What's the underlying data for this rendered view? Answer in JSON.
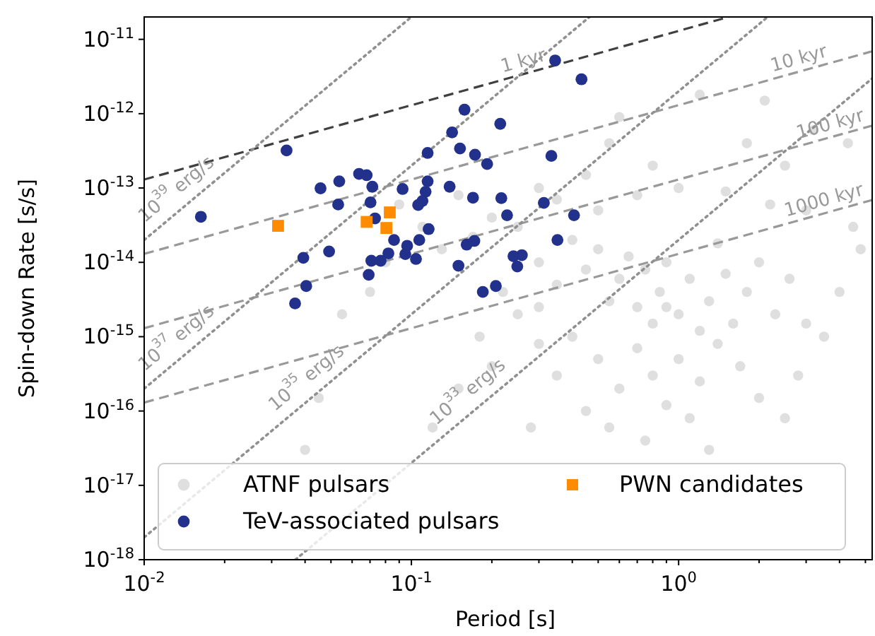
{
  "chart_data": {
    "type": "scatter",
    "xlabel": "Period [s]",
    "ylabel": "Spin-down Rate [s/s]",
    "log": "xy",
    "xlim": [
      0.01,
      5.3
    ],
    "ylim": [
      1e-18,
      2e-11
    ],
    "xticks": [
      {
        "value": 0.01,
        "label": "10$^{-2}$"
      },
      {
        "value": 0.02,
        "label": null
      },
      {
        "value": 0.03,
        "label": null
      },
      {
        "value": 0.04,
        "label": null
      },
      {
        "value": 0.05,
        "label": null
      },
      {
        "value": 0.06,
        "label": null
      },
      {
        "value": 0.07,
        "label": null
      },
      {
        "value": 0.08,
        "label": null
      },
      {
        "value": 0.09,
        "label": null
      },
      {
        "value": 0.1,
        "label": "10$^{-1}$"
      },
      {
        "value": 0.2,
        "label": null
      },
      {
        "value": 0.3,
        "label": null
      },
      {
        "value": 0.4,
        "label": null
      },
      {
        "value": 0.5,
        "label": null
      },
      {
        "value": 0.6,
        "label": null
      },
      {
        "value": 0.7,
        "label": null
      },
      {
        "value": 0.8,
        "label": null
      },
      {
        "value": 0.9,
        "label": null
      },
      {
        "value": 1,
        "label": "10$^{0}$"
      },
      {
        "value": 2,
        "label": null
      },
      {
        "value": 3,
        "label": null
      },
      {
        "value": 4,
        "label": null
      },
      {
        "value": 5,
        "label": null
      }
    ],
    "yticks": [
      {
        "value": 1e-18,
        "label": "10$^{-18}$"
      },
      {
        "value": 1e-17,
        "label": "10$^{-17}$"
      },
      {
        "value": 1e-16,
        "label": "10$^{-16}$"
      },
      {
        "value": 1e-15,
        "label": "10$^{-15}$"
      },
      {
        "value": 1e-14,
        "label": "10$^{-14}$"
      },
      {
        "value": 1e-13,
        "label": "10$^{-13}$"
      },
      {
        "value": 1e-12,
        "label": "10$^{-12}$"
      },
      {
        "value": 1e-11,
        "label": "10$^{-11}$"
      }
    ],
    "grid": false,
    "legend": "bottom",
    "series": [
      {
        "name": "ATNF pulsars",
        "color": "#c4c4c4",
        "marker": "circle",
        "x": [
          0.09,
          0.11,
          0.15,
          0.2,
          0.13,
          0.17,
          0.25,
          0.3,
          0.45,
          0.55,
          0.6,
          0.8,
          1.2,
          2.1,
          3.2,
          4.3,
          1.8,
          2.5,
          0.35,
          0.5,
          0.7,
          1.0,
          1.5,
          2.2,
          3.0,
          4.5,
          0.08,
          0.07,
          0.055,
          0.045,
          0.04,
          0.3,
          0.35,
          0.4,
          0.45,
          0.5,
          0.55,
          0.6,
          0.65,
          0.7,
          0.75,
          0.8,
          0.85,
          0.9,
          1.0,
          1.1,
          1.2,
          1.3,
          1.5,
          1.6,
          1.8,
          2.0,
          2.3,
          2.6,
          3.0,
          0.25,
          0.3,
          0.4,
          0.5,
          0.6,
          0.7,
          0.8,
          0.9,
          1.0,
          1.2,
          1.4,
          1.7,
          2.0,
          0.35,
          0.45,
          0.55,
          0.75,
          1.1,
          0.2,
          0.18,
          0.22,
          0.15,
          0.12,
          0.28,
          1.3,
          2.8,
          3.5,
          4.0,
          4.8,
          2.5,
          0.3,
          0.9,
          1.4
        ],
        "values": [
          6e-14,
          3e-14,
          8e-14,
          4e-14,
          1.5e-14,
          2.2e-14,
          3e-14,
          1e-13,
          1.5e-13,
          4e-13,
          9e-13,
          2e-13,
          1.8e-12,
          1.5e-12,
          6e-13,
          4e-13,
          4e-13,
          2e-13,
          7e-14,
          5e-14,
          8e-14,
          1e-13,
          9e-14,
          6e-14,
          5e-14,
          3e-14,
          1e-14,
          4e-15,
          2e-15,
          1.5e-16,
          3e-17,
          1e-14,
          5e-15,
          2e-14,
          8e-15,
          1.5e-14,
          3e-15,
          6e-15,
          1.2e-14,
          2.5e-15,
          8e-15,
          1.5e-15,
          4e-15,
          1e-14,
          2e-15,
          6e-15,
          1.2e-15,
          3e-15,
          7e-15,
          1.5e-15,
          4e-15,
          1e-14,
          2e-15,
          6e-15,
          1.5e-15,
          2e-15,
          8e-16,
          1e-15,
          5e-16,
          2e-16,
          7e-16,
          3e-16,
          1.2e-16,
          5e-16,
          2.5e-16,
          8e-16,
          4e-16,
          1.5e-16,
          3e-16,
          1e-16,
          6e-17,
          4e-17,
          8e-17,
          4e-16,
          1e-15,
          4e-15,
          2e-16,
          6e-17,
          6e-17,
          3e-17,
          3e-16,
          1e-15,
          4e-15,
          1.5e-14,
          8e-17,
          2.5e-15,
          2.5e-15,
          1.8e-14
        ]
      },
      {
        "name": "TeV-associated pulsars",
        "color": "#22318c",
        "marker": "circle",
        "x": [
          0.0341,
          0.0163,
          0.0457,
          0.0537,
          0.0532,
          0.0637,
          0.068,
          0.0714,
          0.0703,
          0.0731,
          0.0927,
          0.115,
          0.115,
          0.113,
          0.11,
          0.106,
          0.116,
          0.0861,
          0.0964,
          0.107,
          0.082,
          0.0767,
          0.0708,
          0.0949,
          0.104,
          0.0394,
          0.0492,
          0.0692,
          0.0404,
          0.0367,
          0.142,
          0.158,
          0.152,
          0.173,
          0.192,
          0.215,
          0.139,
          0.17,
          0.217,
          0.161,
          0.172,
          0.15,
          0.185,
          0.207,
          0.345,
          0.433,
          0.334,
          0.228,
          0.313,
          0.406,
          0.352,
          0.241,
          0.259,
          0.249
        ],
        "values": [
          3.2e-13,
          4.1e-14,
          9.9e-14,
          1.23e-13,
          6e-14,
          1.55e-13,
          1.49e-13,
          1.04e-13,
          6.4e-14,
          3.9e-14,
          9.7e-14,
          2.96e-13,
          1.23e-13,
          8.9e-14,
          6.7e-14,
          5.9e-14,
          2.8e-14,
          2e-14,
          1.67e-14,
          2e-14,
          1.32e-14,
          1.05e-14,
          1.05e-14,
          1.29e-14,
          1.11e-14,
          1.15e-14,
          1.4e-14,
          6.8e-15,
          4.8e-15,
          2.8e-15,
          5.6e-13,
          1.13e-12,
          3.4e-13,
          2.8e-13,
          2.1e-13,
          7.3e-13,
          1.04e-13,
          7.4e-14,
          7.3e-14,
          1.73e-14,
          1.94e-14,
          9e-15,
          4e-15,
          4.8e-15,
          5.2e-12,
          2.9e-12,
          2.7e-13,
          4.3e-14,
          6.3e-14,
          4.3e-14,
          2e-14,
          1.21e-14,
          1.25e-14,
          8.8e-15
        ]
      },
      {
        "name": "PWN candidates",
        "color": "#ff8c00",
        "marker": "square",
        "x": [
          0.0317,
          0.068,
          0.083,
          0.0806
        ],
        "values": [
          3.1e-14,
          3.5e-14,
          4.7e-14,
          2.9e-14
        ]
      },
      {
        "type": "line",
        "color": "#404040",
        "line_style": "dashed",
        "marker": "none",
        "x": [
          0.01,
          1.54
        ],
        "values": [
          1.3e-13,
          2e-11
        ]
      },
      {
        "type": "line",
        "color": "#999999",
        "line_style": "dashed",
        "marker": "none",
        "x": [
          0.01,
          5.3
        ],
        "values": [
          1.3e-14,
          6.9e-12
        ]
      },
      {
        "type": "line",
        "color": "#999999",
        "line_style": "dashed",
        "marker": "none",
        "x": [
          0.01,
          5.3
        ],
        "values": [
          1.3e-15,
          6.9e-13
        ]
      },
      {
        "type": "line",
        "color": "#999999",
        "line_style": "dashed",
        "marker": "none",
        "x": [
          0.01,
          5.3
        ],
        "values": [
          1.3e-16,
          6.9e-14
        ]
      },
      {
        "type": "line",
        "color": "#909090",
        "line_style": "dotted",
        "marker": "none",
        "x": [
          0.01,
          0.1
        ],
        "values": [
          2e-14,
          2e-11
        ]
      },
      {
        "type": "line",
        "color": "#909090",
        "line_style": "dotted",
        "marker": "none",
        "x": [
          0.01,
          0.464
        ],
        "values": [
          2e-16,
          2e-11
        ]
      },
      {
        "type": "line",
        "color": "#909090",
        "line_style": "dotted",
        "marker": "none",
        "x": [
          0.01,
          2.154
        ],
        "values": [
          2e-18,
          2e-11
        ]
      },
      {
        "type": "line",
        "color": "#909090",
        "line_style": "dotted",
        "marker": "none",
        "x": [
          0.0368,
          5.3
        ],
        "values": [
          1e-18,
          2.98e-12
        ]
      }
    ],
    "annotations": [
      {
        "text": "1 kyr",
        "x": 0.27,
        "y": 3.51e-12
      },
      {
        "text": "10 kyr",
        "x": 2.9,
        "y": 3.77e-12
      },
      {
        "text": "100 kyr",
        "x": 3.8,
        "y": 4.94e-13
      },
      {
        "text": "1000 kyr",
        "x": 3.6,
        "y": 4.68e-14
      },
      {
        "text": "10$^{39}$ erg/s",
        "x": 0.0146,
        "y": 6.22e-14
      },
      {
        "text": "10$^{37}$ erg/s",
        "x": 0.0146,
        "y": 6.22e-16
      },
      {
        "text": "10$^{35}$ erg/s",
        "x": 0.0448,
        "y": 1.8e-16
      },
      {
        "text": "10$^{33}$ erg/s",
        "x": 0.18,
        "y": 1.17e-16
      }
    ]
  }
}
